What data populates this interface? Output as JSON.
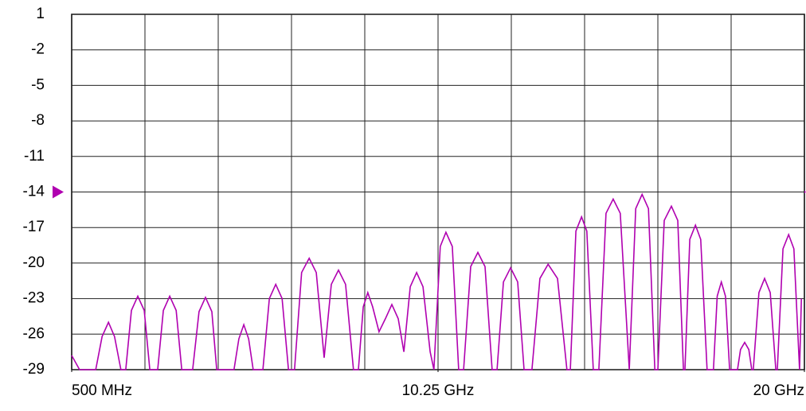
{
  "chart_data": {
    "type": "line",
    "x": [
      0.5,
      0.71,
      1.14,
      1.31,
      1.48,
      1.64,
      1.81,
      1.94,
      2.09,
      2.26,
      2.43,
      2.58,
      2.79,
      2.94,
      3.11,
      3.28,
      3.43,
      3.72,
      3.89,
      4.06,
      4.23,
      4.36,
      4.82,
      4.95,
      5.08,
      5.21,
      5.33,
      5.59,
      5.76,
      5.93,
      6.1,
      6.27,
      6.43,
      6.62,
      6.82,
      7.01,
      7.22,
      7.41,
      7.6,
      7.79,
      8.0,
      8.13,
      8.26,
      8.38,
      8.51,
      8.68,
      8.85,
      9.02,
      9.19,
      9.34,
      9.51,
      9.68,
      9.85,
      10.04,
      10.14,
      10.31,
      10.46,
      10.63,
      10.8,
      10.93,
      11.12,
      11.31,
      11.5,
      11.69,
      11.82,
      11.99,
      12.18,
      12.37,
      12.54,
      12.75,
      12.96,
      13.18,
      13.43,
      13.68,
      13.77,
      13.92,
      14.07,
      14.21,
      14.38,
      14.53,
      14.72,
      14.91,
      15.1,
      15.34,
      15.51,
      15.68,
      15.85,
      16.02,
      16.1,
      16.27,
      16.46,
      16.63,
      16.78,
      16.82,
      16.95,
      17.1,
      17.24,
      17.41,
      17.58,
      17.68,
      17.79,
      17.9,
      18.01,
      18.22,
      18.3,
      18.41,
      18.52,
      18.6,
      18.64,
      18.79,
      18.94,
      19.09,
      19.24,
      19.28,
      19.43,
      19.58,
      19.72,
      19.87,
      19.92
    ],
    "series": [
      {
        "color": "#b000b0",
        "values": [
          -27.8,
          -29,
          -29,
          -26.2,
          -25,
          -26.2,
          -29,
          -29,
          -24,
          -22.8,
          -24,
          -29,
          -29,
          -24,
          -22.8,
          -24,
          -29,
          -29,
          -24.1,
          -22.9,
          -24.1,
          -29,
          -29,
          -26.4,
          -25.2,
          -26.4,
          -29,
          -29,
          -23,
          -21.8,
          -23,
          -29,
          -29,
          -20.8,
          -19.6,
          -20.8,
          -28,
          -21.8,
          -20.6,
          -21.8,
          -29,
          -29,
          -23.7,
          -22.5,
          -23.7,
          -25.8,
          -24.7,
          -23.5,
          -24.7,
          -27.5,
          -22,
          -20.8,
          -22,
          -27.5,
          -29,
          -18.6,
          -17.4,
          -18.6,
          -29,
          -29,
          -20.3,
          -19.1,
          -20.3,
          -29,
          -29,
          -21.6,
          -20.4,
          -21.6,
          -29,
          -29,
          -21.3,
          -20.1,
          -21.3,
          -29,
          -29,
          -17.3,
          -16.1,
          -17.3,
          -29,
          -29,
          -15.8,
          -14.6,
          -15.8,
          -29,
          -15.4,
          -14.2,
          -15.4,
          -29,
          -29,
          -16.4,
          -15.2,
          -16.4,
          -29,
          -29,
          -18,
          -16.8,
          -18,
          -29,
          -29,
          -22.8,
          -21.6,
          -22.8,
          -29,
          -29,
          -27.3,
          -26.7,
          -27.3,
          -29,
          -29,
          -22.5,
          -21.3,
          -22.5,
          -29,
          -29,
          -18.8,
          -17.6,
          -18.8,
          -29,
          -23
        ]
      }
    ],
    "xlim": [
      0.5,
      20
    ],
    "xticks": [
      {
        "value": 0.5,
        "label": "500 MHz"
      },
      {
        "value": 10.25,
        "label": "10.25 GHz"
      },
      {
        "value": 20,
        "label": "20 GHz"
      }
    ],
    "ylim": [
      -29,
      1
    ],
    "yticks": [
      1,
      -2,
      -5,
      -8,
      -11,
      -14,
      -17,
      -20,
      -23,
      -26,
      -29
    ],
    "reference_level": -14,
    "grid": true
  }
}
